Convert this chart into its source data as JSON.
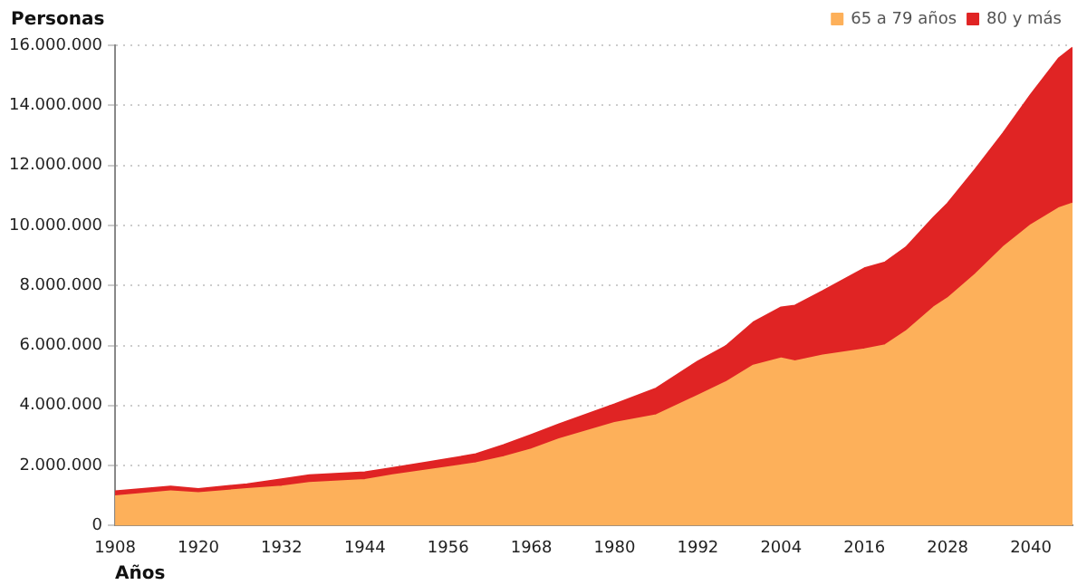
{
  "chart_data": {
    "type": "area",
    "stacked": true,
    "xlabel": "Años",
    "ylabel": "Personas",
    "x": [
      1908,
      1916,
      1920,
      1927,
      1932,
      1936,
      1944,
      1948,
      1956,
      1960,
      1964,
      1968,
      1972,
      1980,
      1986,
      1992,
      1996,
      2000,
      2004,
      2006,
      2010,
      2016,
      2019,
      2022,
      2026,
      2028,
      2032,
      2036,
      2040,
      2044,
      2046
    ],
    "series": [
      {
        "name": "65 a 79 años",
        "color": "#fdb05a",
        "values": [
          980000,
          1140000,
          1080000,
          1220000,
          1300000,
          1420000,
          1520000,
          1680000,
          1940000,
          2080000,
          2280000,
          2540000,
          2880000,
          3420000,
          3680000,
          4330000,
          4770000,
          5330000,
          5570000,
          5470000,
          5670000,
          5870000,
          6010000,
          6470000,
          7270000,
          7570000,
          8370000,
          9270000,
          10010000,
          10570000,
          10730000
        ]
      },
      {
        "name": "80 y más",
        "color": "#e02424",
        "values": [
          160000,
          160000,
          140000,
          160000,
          240000,
          260000,
          260000,
          240000,
          280000,
          300000,
          400000,
          480000,
          500000,
          620000,
          890000,
          1140000,
          1200000,
          1440000,
          1700000,
          1860000,
          2140000,
          2700000,
          2760000,
          2800000,
          3000000,
          3160000,
          3500000,
          3800000,
          4350000,
          4990000,
          5190000
        ]
      }
    ],
    "xlim": [
      1908,
      2046
    ],
    "xticks": [
      1908,
      1920,
      1932,
      1944,
      1956,
      1968,
      1980,
      1992,
      2004,
      2016,
      2028,
      2040
    ],
    "ylim": [
      0,
      16000000
    ],
    "yticks": [
      0,
      {
        "value": 2000000,
        "label": "2.000.000"
      },
      {
        "value": 4000000,
        "label": "4.000.000"
      },
      {
        "value": 6000000,
        "label": "6.000.000"
      },
      {
        "value": 8000000,
        "label": "8.000.000"
      },
      {
        "value": 10000000,
        "label": "10.000.000"
      },
      {
        "value": 12000000,
        "label": "12.000.000"
      },
      {
        "value": 14000000,
        "label": "14.000.000"
      },
      {
        "value": 16000000,
        "label": "16.000.000"
      }
    ],
    "grid": "y",
    "legend": "top right"
  }
}
